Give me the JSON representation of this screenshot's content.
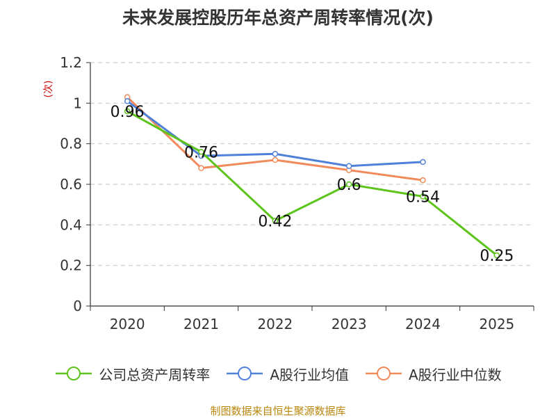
{
  "chart_data": {
    "type": "line",
    "title": "未来发展控股历年总资产周转率情况(次)",
    "ylabel": "(次)",
    "xlabel": "",
    "categories": [
      "2020",
      "2021",
      "2022",
      "2023",
      "2024",
      "2025"
    ],
    "y_ticks": [
      "0",
      "0.2",
      "0.4",
      "0.6",
      "0.8",
      "1",
      "1.2"
    ],
    "ylim": [
      0,
      1.2
    ],
    "grid": true,
    "legend_position": "bottom",
    "series": [
      {
        "name": "公司总资产周转率",
        "color": "#5cc41b",
        "values": [
          0.96,
          0.76,
          0.42,
          0.6,
          0.54,
          0.25
        ],
        "labels": [
          "0.96",
          "0.76",
          "0.42",
          "0.6",
          "0.54",
          "0.25"
        ]
      },
      {
        "name": "A股行业均值",
        "color": "#4f81d9",
        "values": [
          1.01,
          0.74,
          0.75,
          0.69,
          0.71,
          null
        ]
      },
      {
        "name": "A股行业中位数",
        "color": "#f28b5b",
        "values": [
          1.03,
          0.68,
          0.72,
          0.67,
          0.62,
          null
        ]
      }
    ]
  },
  "source_note": "制图数据来自恒生聚源数据库"
}
